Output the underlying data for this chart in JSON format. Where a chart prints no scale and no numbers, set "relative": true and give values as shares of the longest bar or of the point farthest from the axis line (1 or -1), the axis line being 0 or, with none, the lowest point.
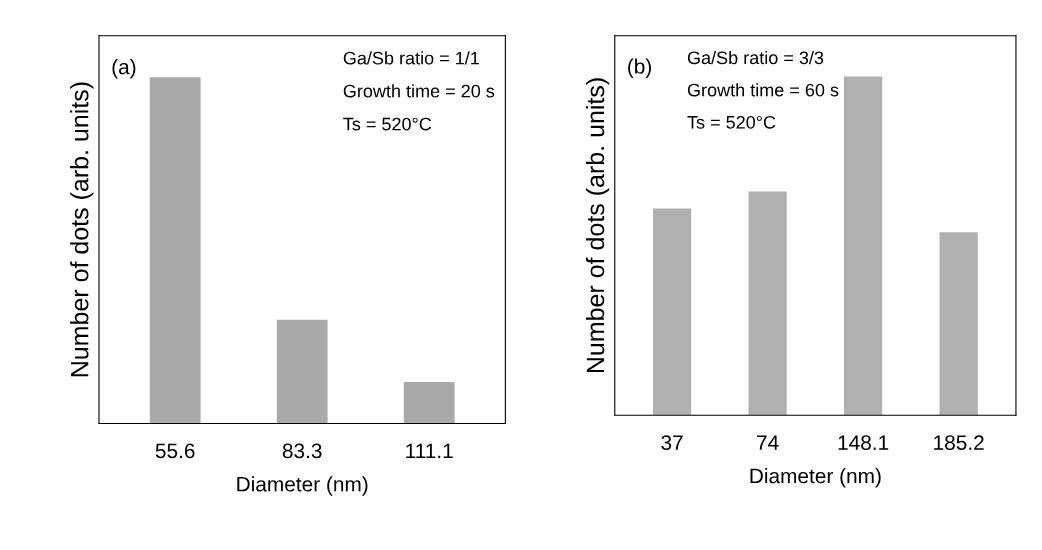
{
  "chart_data": [
    {
      "type": "bar",
      "relative": true,
      "xlabel": "Diameter (nm)",
      "ylabel": "Number of dots (arb. units)",
      "categories": [
        "55.6",
        "83.3",
        "111.1"
      ],
      "values": [
        1,
        0.3,
        0.12
      ],
      "color": "#a9a9a9",
      "annotations": [
        "(a)",
        "Ga/Sb ratio = 1/1",
        "Growth time = 20 s",
        "Ts = 520°C"
      ]
    },
    {
      "type": "bar",
      "relative": true,
      "xlabel": "Diameter (nm)",
      "ylabel": "Number of dots (arb. units)",
      "categories": [
        "37",
        "74",
        "148.1",
        "185.2"
      ],
      "values": [
        0.61,
        0.66,
        1,
        0.54
      ],
      "color": "#b0b0b0",
      "annotations": [
        "(b)",
        "Ga/Sb ratio = 3/3",
        "Growth time = 60 s",
        "Ts = 520°C"
      ]
    }
  ]
}
